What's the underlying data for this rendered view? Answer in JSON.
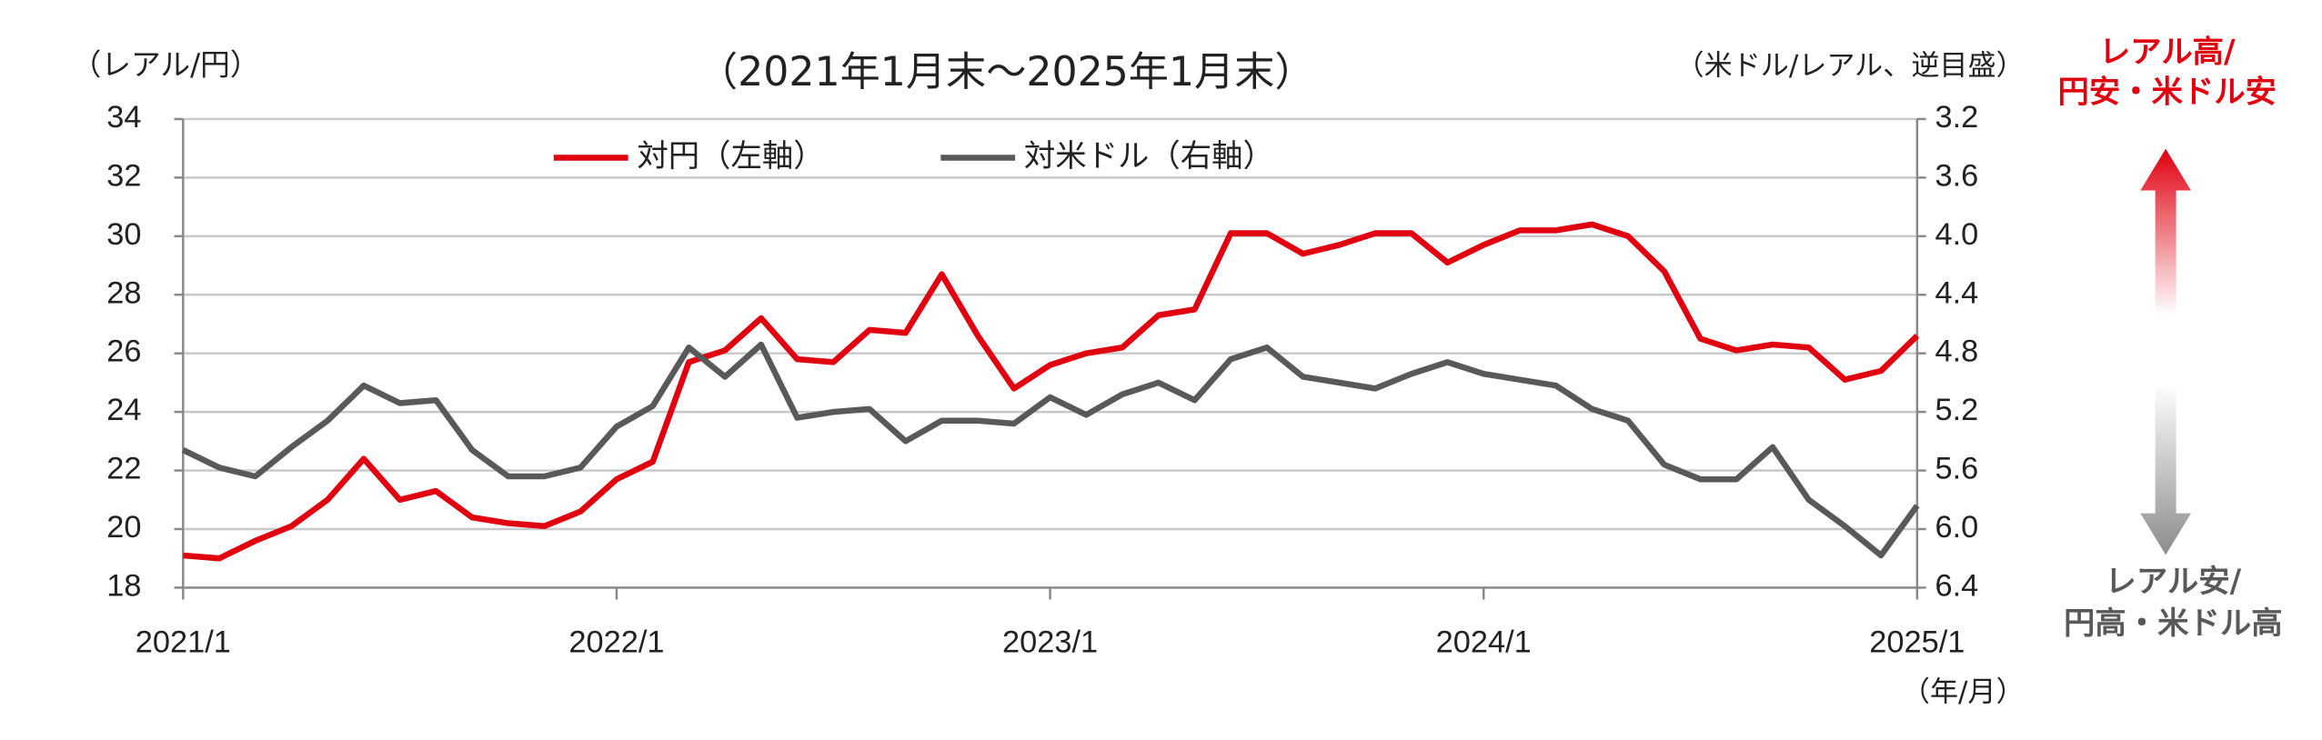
{
  "chart_data": {
    "type": "line",
    "title": "（2021年1月末～2025年1月末）",
    "y_label": "（レアル/円）",
    "y2_label": "（米ドル/レアル、逆目盛）",
    "x_label": "（年/月）",
    "annotations": {
      "up": [
        "レアル高/",
        "円安・米ドル安"
      ],
      "down": [
        "レアル安/",
        "円高・米ドル高"
      ]
    },
    "categories": [
      "2021/1",
      null,
      null,
      null,
      null,
      null,
      null,
      null,
      null,
      null,
      null,
      null,
      "2022/1",
      null,
      null,
      null,
      null,
      null,
      null,
      null,
      null,
      null,
      null,
      null,
      "2023/1",
      null,
      null,
      null,
      null,
      null,
      null,
      null,
      null,
      null,
      null,
      null,
      "2024/1",
      null,
      null,
      null,
      null,
      null,
      null,
      null,
      null,
      null,
      null,
      null,
      "2025/1"
    ],
    "series": [
      {
        "name": "対円（左軸）",
        "color": "#e0000f",
        "values": [
          19.1,
          19.0,
          19.6,
          20.1,
          21.0,
          22.4,
          21.0,
          21.3,
          20.4,
          20.2,
          20.1,
          20.6,
          21.7,
          22.3,
          25.7,
          26.1,
          27.2,
          25.8,
          25.7,
          26.8,
          26.7,
          28.7,
          26.6,
          24.8,
          25.6,
          26.0,
          26.2,
          27.3,
          27.5,
          30.1,
          30.1,
          29.4,
          29.7,
          30.1,
          30.1,
          29.1,
          29.7,
          30.2,
          30.2,
          30.4,
          30.0,
          28.8,
          26.5,
          26.1,
          26.3,
          26.2,
          25.1,
          25.4,
          26.6
        ]
      },
      {
        "name": "対米ドル（右軸）",
        "color": "#595959",
        "axis": "y2",
        "values": [
          5.46,
          5.58,
          5.64,
          5.44,
          5.26,
          5.02,
          5.14,
          5.12,
          5.46,
          5.64,
          5.64,
          5.58,
          5.3,
          5.16,
          4.76,
          4.96,
          4.74,
          5.24,
          5.2,
          5.18,
          5.4,
          5.26,
          5.26,
          5.28,
          5.1,
          5.22,
          5.08,
          5.0,
          5.12,
          4.84,
          4.76,
          4.96,
          5.0,
          5.04,
          4.94,
          4.86,
          4.94,
          4.98,
          5.02,
          5.18,
          5.26,
          5.56,
          5.66,
          5.66,
          5.44,
          5.8,
          5.98,
          6.18,
          5.84
        ]
      }
    ],
    "ylim": [
      18,
      34
    ],
    "yticks": [
      18,
      20,
      22,
      24,
      26,
      28,
      30,
      32,
      34
    ],
    "y2lim": [
      6.4,
      3.2
    ],
    "y2ticks": [
      6.4,
      {
        "value": 6.0,
        "label": "6.0"
      },
      5.6,
      5.2,
      4.8,
      4.4,
      {
        "value": 4.0,
        "label": "4.0"
      },
      3.6,
      3.2
    ],
    "grid": true
  }
}
